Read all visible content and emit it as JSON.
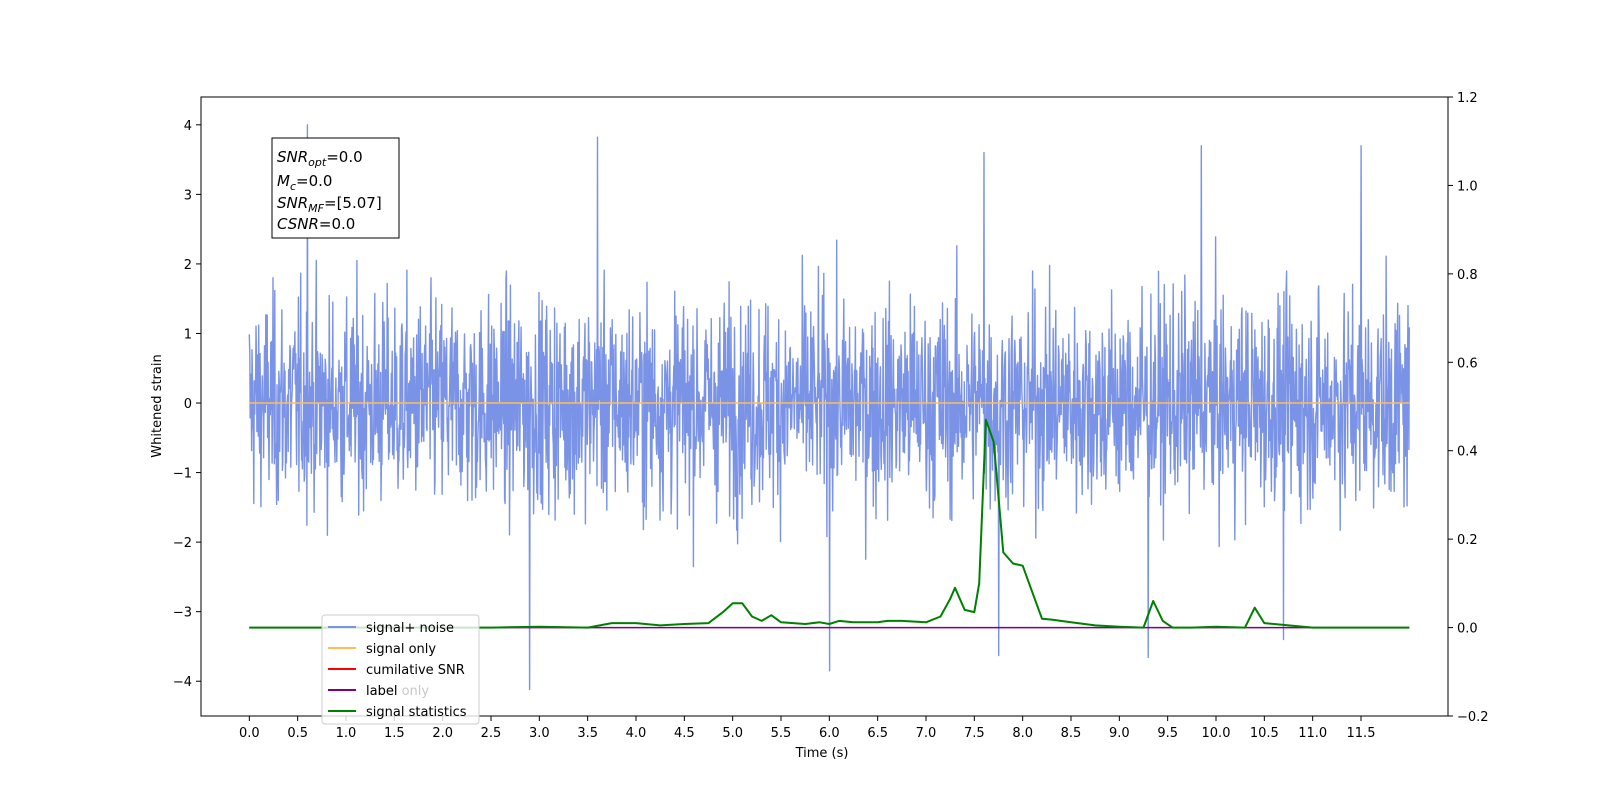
{
  "chart_data": {
    "type": "line",
    "xlabel": "Time (s)",
    "ylabel": "Whitened strain",
    "xlim": [
      -0.5,
      12.4
    ],
    "ylim": [
      -4.5,
      4.4
    ],
    "y2lim": [
      -0.2,
      1.2
    ],
    "x_ticks": [
      0.0,
      0.5,
      1.0,
      1.5,
      2.0,
      2.5,
      3.0,
      3.5,
      4.0,
      4.5,
      5.0,
      5.5,
      6.0,
      6.5,
      7.0,
      7.5,
      8.0,
      8.5,
      9.0,
      9.5,
      10.0,
      10.5,
      11.0,
      11.5
    ],
    "x_tick_labels": [
      "0.0",
      "0.5",
      "1.0",
      "1.5",
      "2.0",
      "2.5",
      "3.0",
      "3.5",
      "4.0",
      "4.5",
      "5.0",
      "5.5",
      "6.0",
      "6.5",
      "7.0",
      "7.5",
      "8.0",
      "8.5",
      "9.0",
      "9.5",
      "10.0",
      "10.5",
      "11.0",
      "11.5"
    ],
    "y_ticks": [
      -4,
      -3,
      -2,
      -1,
      0,
      1,
      2,
      3,
      4
    ],
    "y_tick_labels": [
      "−4",
      "−3",
      "−2",
      "−1",
      "0",
      "1",
      "2",
      "3",
      "4"
    ],
    "y2_ticks": [
      -0.2,
      0.0,
      0.2,
      0.4,
      0.6,
      0.8,
      1.0,
      1.2
    ],
    "y2_tick_labels": [
      "−0.2",
      "0.0",
      "0.2",
      "0.4",
      "0.6",
      "0.8",
      "1.0",
      "1.2"
    ],
    "grid": false,
    "legend_position": "lower-left",
    "info_box": {
      "lines": [
        {
          "name": "SNR",
          "sub": "opt",
          "value": "=0.0"
        },
        {
          "name": "M",
          "sub": "c",
          "value": "=0.0"
        },
        {
          "name": "SNR",
          "sub": "MF",
          "value": "=[5.07]"
        },
        {
          "name": "CSNR",
          "sub": "",
          "value": "=0.0"
        }
      ]
    },
    "series": [
      {
        "name": "signal+ noise",
        "color": "#7a93e6",
        "axis": "left",
        "style": "whitened noise, amplitude approx ±2.5 with spikes to ±4",
        "x_range": [
          0.0,
          12.0
        ],
        "peaks": [
          [
            0.6,
            4.0
          ],
          [
            3.6,
            3.82
          ],
          [
            7.6,
            3.6
          ],
          [
            9.85,
            3.7
          ],
          [
            11.5,
            3.7
          ],
          [
            2.9,
            -4.12
          ],
          [
            6.0,
            -3.85
          ],
          [
            9.3,
            -3.66
          ],
          [
            7.75,
            -3.63
          ],
          [
            10.7,
            -3.4
          ]
        ]
      },
      {
        "name": "signal only",
        "color": "#ffbe55",
        "axis": "left",
        "x": [
          0.0,
          12.0
        ],
        "values": [
          0.0,
          0.0
        ]
      },
      {
        "name": "cumilative SNR",
        "color": "#ff0000",
        "axis": "right",
        "x": [
          0.0,
          12.0
        ],
        "values": [
          0.0,
          0.0
        ]
      },
      {
        "name": "label",
        "color": "#7f007f",
        "axis": "right",
        "x": [
          0.0,
          12.0
        ],
        "values": [
          0.0,
          0.0
        ]
      },
      {
        "name": "label only",
        "color": "#ffffff",
        "axis": "right",
        "x": [
          0.0,
          12.0
        ],
        "values": [
          0.0,
          0.0
        ]
      },
      {
        "name": "signal statistics",
        "color": "#008000",
        "axis": "right",
        "x": [
          0.0,
          2.5,
          3.0,
          3.5,
          3.75,
          4.0,
          4.25,
          4.5,
          4.75,
          4.9,
          5.0,
          5.1,
          5.2,
          5.3,
          5.4,
          5.5,
          5.75,
          5.9,
          6.0,
          6.1,
          6.25,
          6.5,
          6.6,
          6.75,
          7.0,
          7.15,
          7.25,
          7.3,
          7.4,
          7.5,
          7.55,
          7.62,
          7.7,
          7.8,
          7.9,
          8.0,
          8.1,
          8.2,
          8.3,
          8.5,
          8.75,
          9.0,
          9.25,
          9.35,
          9.45,
          9.55,
          9.75,
          10.0,
          10.3,
          10.4,
          10.5,
          11.0,
          12.0
        ],
        "values": [
          0.0,
          0.0,
          0.002,
          0.0,
          0.01,
          0.01,
          0.005,
          0.008,
          0.01,
          0.035,
          0.055,
          0.055,
          0.025,
          0.015,
          0.028,
          0.012,
          0.008,
          0.012,
          0.008,
          0.015,
          0.012,
          0.012,
          0.015,
          0.015,
          0.012,
          0.025,
          0.065,
          0.09,
          0.04,
          0.035,
          0.1,
          0.47,
          0.42,
          0.17,
          0.145,
          0.14,
          0.08,
          0.02,
          0.018,
          0.012,
          0.005,
          0.002,
          0.0,
          0.06,
          0.015,
          0.0,
          0.0,
          0.002,
          0.0,
          0.045,
          0.01,
          0.0,
          0.0
        ]
      }
    ]
  }
}
